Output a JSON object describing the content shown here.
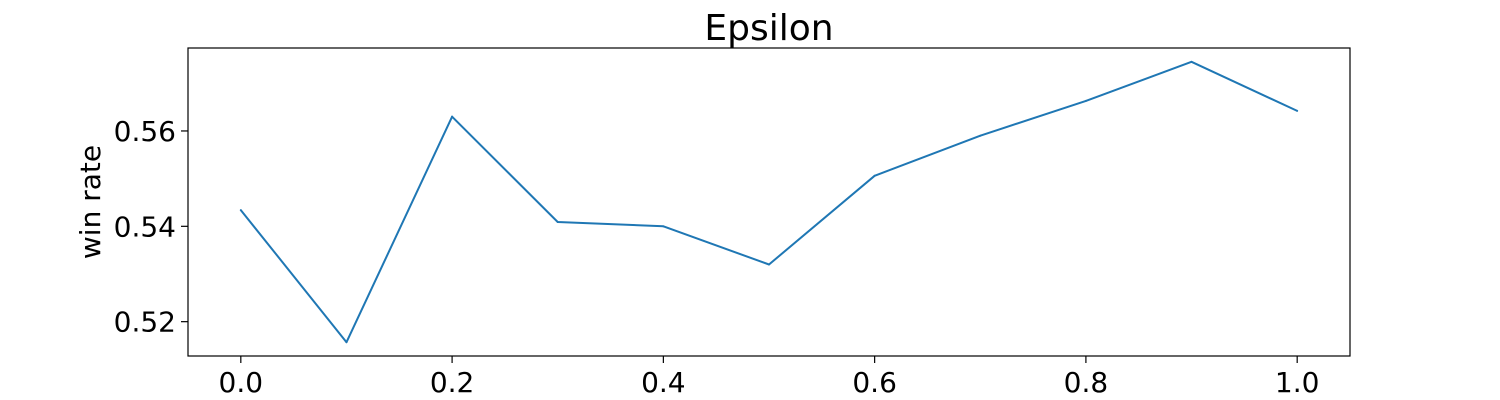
{
  "chart_data": {
    "type": "line",
    "title": "Epsilon",
    "xlabel": "",
    "ylabel": "win rate",
    "x": [
      0.0,
      0.1,
      0.2,
      0.3,
      0.4,
      0.5,
      0.6,
      0.7,
      0.8,
      0.9,
      1.0
    ],
    "series": [
      {
        "values": [
          0.5434,
          0.5157,
          0.563,
          0.5409,
          0.54,
          0.532,
          0.5506,
          0.559,
          0.5663,
          0.5745,
          0.5642
        ],
        "color": "#1f77b4"
      }
    ],
    "xlim": [
      -0.05,
      1.05
    ],
    "ylim": [
      0.5128,
      0.5774
    ],
    "xticks": [
      "0.0",
      "0.2",
      "0.4",
      "0.6",
      "0.8",
      "1.0"
    ],
    "yticks": [
      "0.52",
      "0.54",
      "0.56"
    ],
    "grid": false
  }
}
